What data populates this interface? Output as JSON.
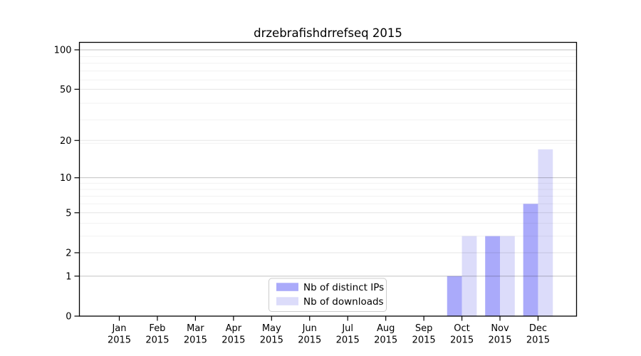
{
  "chart_data": {
    "type": "bar",
    "title": "drzebrafishdrrefseq 2015",
    "categories": [
      "Jan",
      "Feb",
      "Mar",
      "Apr",
      "May",
      "Jun",
      "Jul",
      "Aug",
      "Sep",
      "Oct",
      "Nov",
      "Dec"
    ],
    "category_year": "2015",
    "series": [
      {
        "name": "Nb of distinct IPs",
        "color": "#aaaafa",
        "values": [
          0,
          0,
          0,
          0,
          0,
          0,
          0,
          0,
          0,
          1,
          3,
          6
        ]
      },
      {
        "name": "Nb of downloads",
        "color": "#dcdcfa",
        "values": [
          0,
          0,
          0,
          0,
          0,
          0,
          0,
          0,
          0,
          3,
          3,
          17
        ]
      }
    ],
    "xlabel": "",
    "ylabel": "",
    "y_scale": "log10(1+x)",
    "ylim": [
      0,
      115
    ],
    "yticks": [
      0,
      1,
      2,
      5,
      10,
      20,
      50,
      100
    ],
    "grid": "on",
    "gridlines": {
      "major": [
        1,
        10,
        100
      ],
      "mid": [
        2,
        5,
        20,
        50
      ],
      "minor": [
        3,
        4,
        6,
        7,
        8,
        9,
        19,
        29,
        39,
        59,
        69,
        79,
        89
      ]
    },
    "legend_position": "bottom-center",
    "colors": {
      "axis": "#000000",
      "grid_major": "rgba(0,0,0,0.24)",
      "grid_mid": "rgba(0,0,0,0.10)",
      "grid_minor": "rgba(0,0,0,0.055)",
      "legend_border": "#cccccc",
      "background": "#ffffff"
    }
  }
}
